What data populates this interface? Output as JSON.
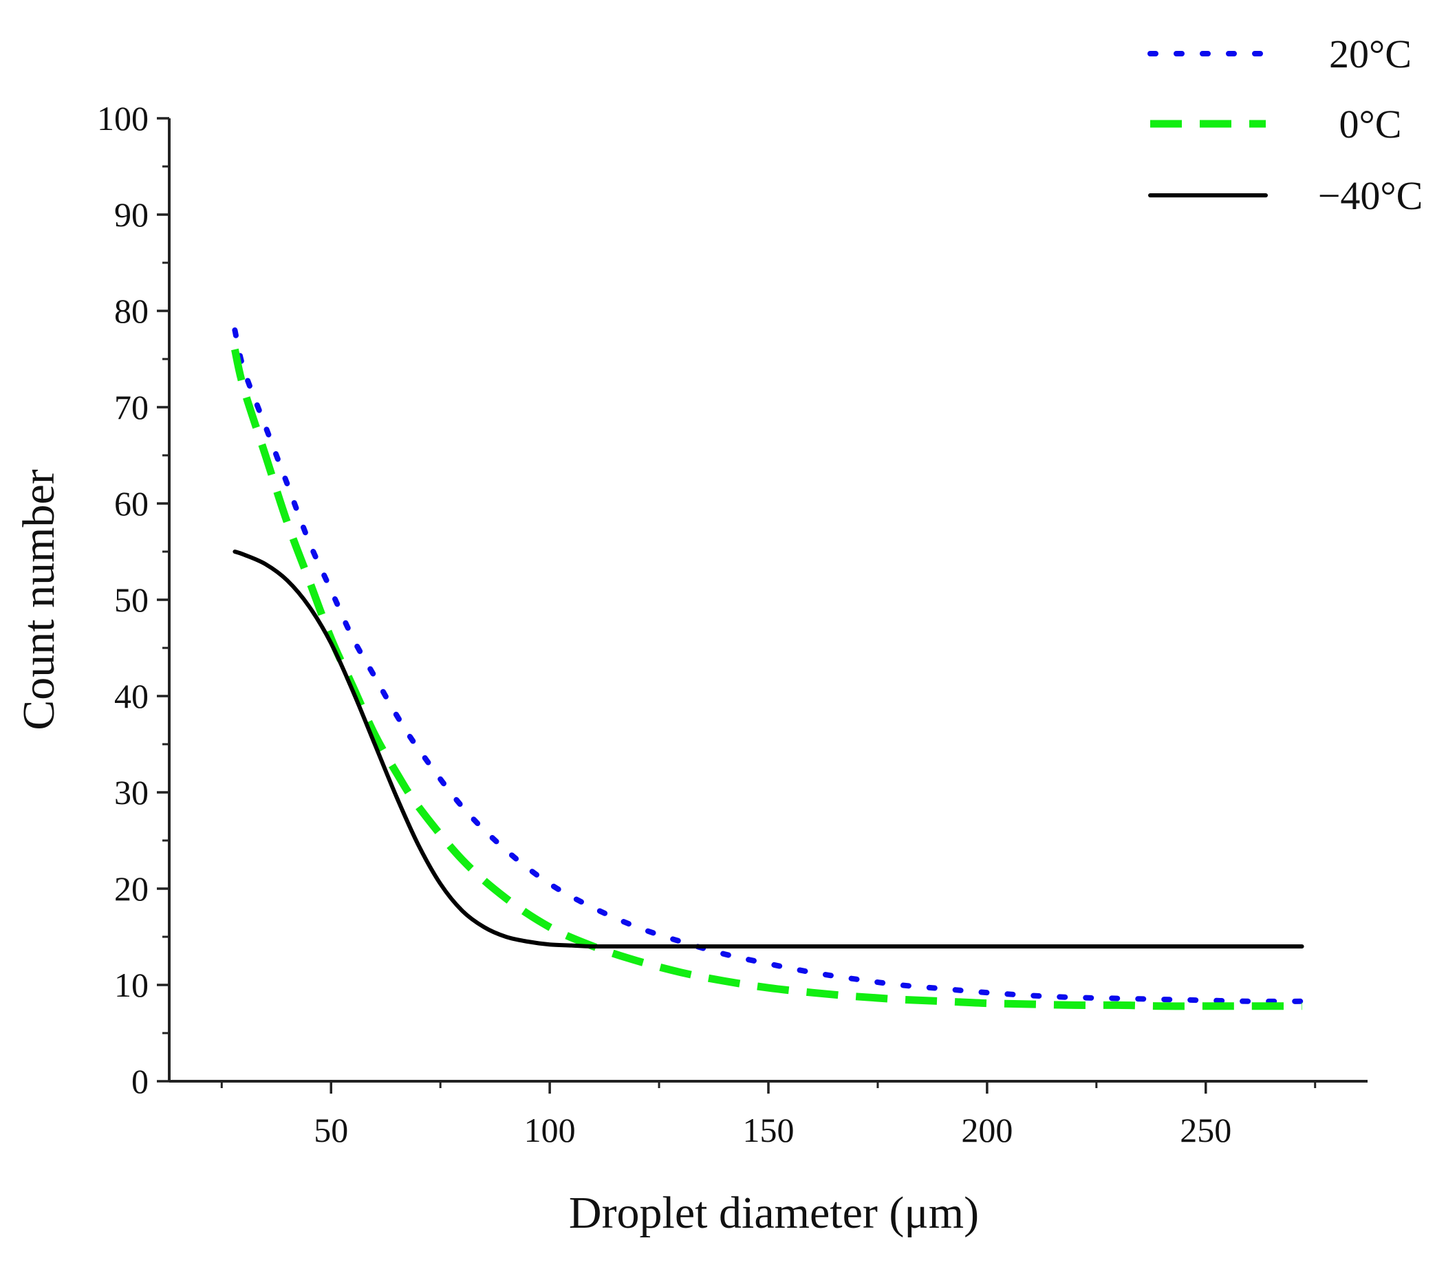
{
  "chart_data": {
    "type": "line",
    "title": "",
    "xlabel": "Droplet diameter (μm)",
    "ylabel": "Count number",
    "xlim": [
      13,
      287
    ],
    "ylim": [
      0,
      100
    ],
    "xticks": [
      50,
      100,
      150,
      200,
      250
    ],
    "yticks": [
      0,
      10,
      20,
      30,
      40,
      50,
      60,
      70,
      80,
      90,
      100
    ],
    "grid": false,
    "legend_position": "top-right",
    "series": [
      {
        "name": "20°C",
        "style": "dotted",
        "color": "#0a0aee",
        "x": [
          28,
          30,
          35,
          40,
          45,
          50,
          55,
          60,
          65,
          70,
          80,
          90,
          100,
          110,
          120,
          130,
          140,
          150,
          160,
          170,
          180,
          190,
          200,
          210,
          220,
          230,
          240,
          250,
          260,
          272
        ],
        "y": [
          78,
          74,
          68,
          62,
          56,
          51,
          46,
          42,
          38,
          34.5,
          28.5,
          24,
          20.5,
          18,
          16,
          14.5,
          13.2,
          12.2,
          11.3,
          10.6,
          10,
          9.6,
          9.2,
          8.9,
          8.7,
          8.6,
          8.5,
          8.4,
          8.3,
          8.3
        ]
      },
      {
        "name": "0°C",
        "style": "dashed",
        "color": "#11ee11",
        "x": [
          28,
          30,
          35,
          40,
          45,
          50,
          55,
          60,
          65,
          70,
          80,
          90,
          100,
          110,
          120,
          130,
          140,
          150,
          160,
          170,
          180,
          190,
          200,
          210,
          220,
          230,
          240,
          250,
          260,
          272
        ],
        "y": [
          76,
          72,
          65,
          58,
          52,
          46,
          41,
          36,
          32,
          28.5,
          23,
          19,
          16,
          14,
          12.5,
          11.3,
          10.4,
          9.7,
          9.2,
          8.8,
          8.5,
          8.3,
          8.1,
          8,
          7.9,
          7.9,
          7.8,
          7.8,
          7.8,
          7.8
        ]
      },
      {
        "name": "−40°C",
        "style": "solid",
        "color": "#000000",
        "x": [
          28,
          30,
          35,
          40,
          45,
          50,
          55,
          60,
          65,
          70,
          75,
          80,
          85,
          90,
          95,
          100,
          105,
          110,
          120,
          130,
          150,
          200,
          250,
          272
        ],
        "y": [
          55,
          54.7,
          53.7,
          52,
          49.3,
          45.5,
          40.5,
          35,
          29.5,
          24.5,
          20.5,
          17.7,
          16,
          15,
          14.5,
          14.2,
          14.1,
          14,
          14,
          14,
          14,
          14,
          14,
          14
        ]
      }
    ]
  }
}
